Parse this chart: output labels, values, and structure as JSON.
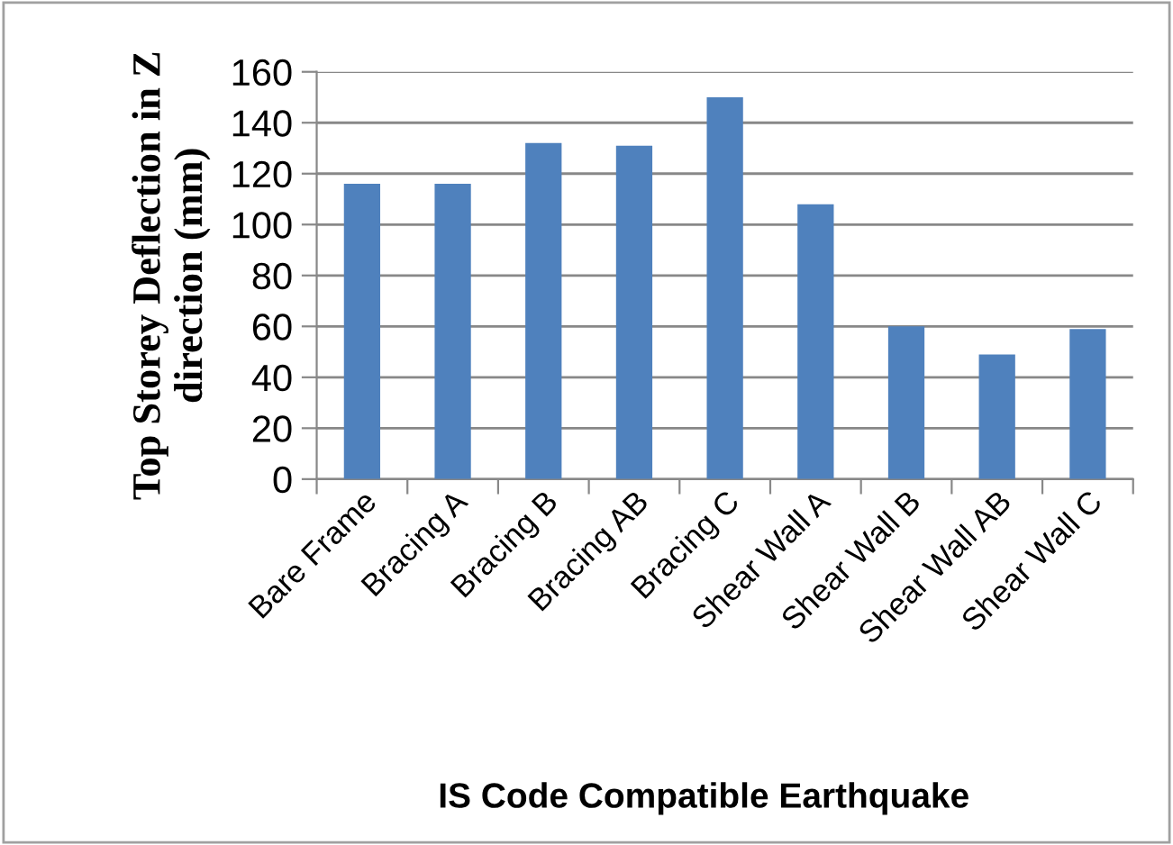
{
  "chart_data": {
    "type": "bar",
    "categories": [
      "Bare Frame",
      "Bracing A",
      "Bracing B",
      "Bracing AB",
      "Bracing C",
      "Shear Wall A",
      "Shear Wall B",
      "Shear Wall AB",
      "Shear Wall C"
    ],
    "values": [
      116,
      116,
      132,
      131,
      150,
      108,
      60,
      49,
      59
    ],
    "color": "#4f81bd",
    "ylabel": "Top Storey Deflection in Z\ndirection (mm)",
    "xlabel": "IS Code Compatible Earthquake",
    "ylim": [
      0,
      160
    ],
    "yticks": [
      0,
      20,
      40,
      60,
      80,
      100,
      120,
      140,
      160
    ],
    "grid": "y",
    "legend": false
  }
}
